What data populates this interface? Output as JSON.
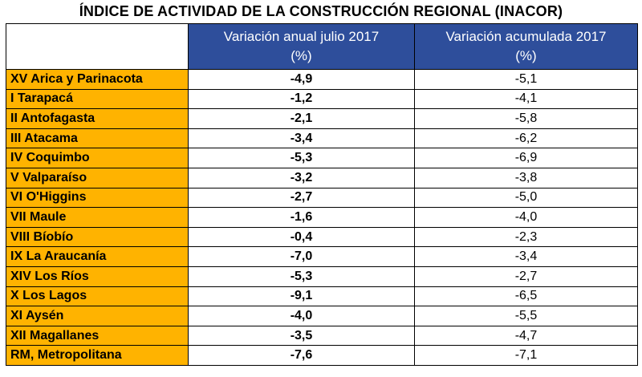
{
  "title": "ÍNDICE DE ACTIVIDAD DE LA CONSTRUCCIÓN REGIONAL (INACOR)",
  "colors": {
    "header_bg": "#2e4e9b",
    "region_bg": "#ffb300"
  },
  "chart_data": {
    "type": "table",
    "title": "ÍNDICE DE ACTIVIDAD DE LA CONSTRUCCIÓN REGIONAL (INACOR)",
    "columns": [
      {
        "line1": "Variación anual julio 2017",
        "line2": "(%)"
      },
      {
        "line1": "Variación acumulada 2017",
        "line2": "(%)"
      }
    ],
    "rows": [
      {
        "region": "XV Arica y Parinacota",
        "annual": "-4,9",
        "cumulative": "-5,1"
      },
      {
        "region": "I Tarapacá",
        "annual": "-1,2",
        "cumulative": "-4,1"
      },
      {
        "region": "II Antofagasta",
        "annual": "-2,1",
        "cumulative": "-5,8"
      },
      {
        "region": "III Atacama",
        "annual": "-3,4",
        "cumulative": "-6,2"
      },
      {
        "region": "IV Coquimbo",
        "annual": "-5,3",
        "cumulative": "-6,9"
      },
      {
        "region": "V Valparaíso",
        "annual": "-3,2",
        "cumulative": "-3,8"
      },
      {
        "region": "VI O'Higgins",
        "annual": "-2,7",
        "cumulative": "-5,0"
      },
      {
        "region": "VII Maule",
        "annual": "-1,6",
        "cumulative": "-4,0"
      },
      {
        "region": "VIII Bíobío",
        "annual": "-0,4",
        "cumulative": "-2,3"
      },
      {
        "region": "IX La Araucanía",
        "annual": "-7,0",
        "cumulative": "-3,4"
      },
      {
        "region": "XIV Los Ríos",
        "annual": "-5,3",
        "cumulative": "-2,7"
      },
      {
        "region": "X Los Lagos",
        "annual": "-9,1",
        "cumulative": "-6,5"
      },
      {
        "region": "XI Aysén",
        "annual": "-4,0",
        "cumulative": "-5,5"
      },
      {
        "region": "XII Magallanes",
        "annual": "-3,5",
        "cumulative": "-4,7"
      },
      {
        "region": "RM, Metropolitana",
        "annual": "-7,6",
        "cumulative": "-7,1"
      }
    ]
  }
}
